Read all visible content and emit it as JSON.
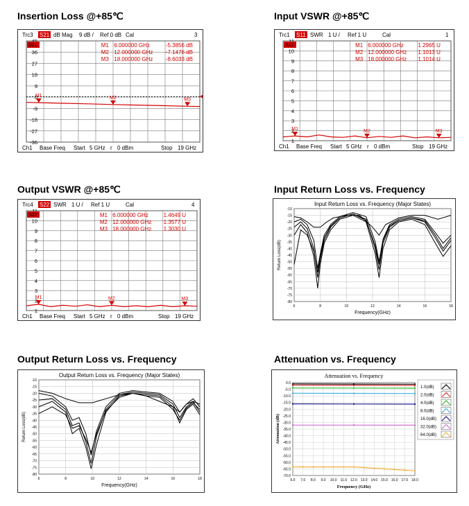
{
  "titles": {
    "insertion": "Insertion Loss @+85℃",
    "input_vswr": "Input VSWR @+85℃",
    "output_vswr": "Output VSWR @+85℃",
    "input_rl": "Input Return Loss vs. Frequency",
    "output_rl": "Output Return Loss vs. Frequency",
    "atten": "Attenuation vs. Frequency"
  },
  "colors": {
    "trace": "#d40000",
    "grid": "#444444",
    "badge": "#d40000"
  },
  "chart_data": [
    {
      "id": "insertion",
      "type": "line",
      "header": {
        "trc": "Trc3",
        "param": "S21",
        "format": "dB Mag",
        "scale": "9 dB /",
        "ref": "Ref 0 dB",
        "cal": "Cal",
        "num": "3"
      },
      "footer": {
        "ch": "Ch1",
        "base": "Base Freq",
        "start": "Start",
        "start_val": "5 GHz",
        "r": "r",
        "power": "0 dBm",
        "stop": "Stop",
        "stop_val": "19 GHz"
      },
      "yticks": [
        "45",
        "36",
        "27",
        "18",
        "9",
        "0",
        "-9",
        "-18",
        "-27",
        "-36"
      ],
      "markers": [
        {
          "id": "M1",
          "freq": "6.000000 GHz",
          "value": "-5.3856 dB"
        },
        {
          "id": "M2",
          "freq": "12.000000 GHz",
          "value": "-7.1476 dB"
        },
        {
          "id": "M3",
          "freq": "18.000000 GHz",
          "value": "-8.6033 dB"
        }
      ],
      "x": [
        5,
        6,
        8,
        10,
        12,
        14,
        16,
        18,
        19
      ],
      "y": [
        -5.2,
        -5.4,
        -6.0,
        -6.5,
        -7.1,
        -7.6,
        -8.1,
        -8.6,
        -8.8
      ]
    },
    {
      "id": "input_vswr",
      "type": "line",
      "header": {
        "trc": "Trc1",
        "param": "S11",
        "format": "SWR",
        "scale": "1 U /",
        "ref": "Ref 1 U",
        "cal": "Cal",
        "num": "1"
      },
      "footer": {
        "ch": "Ch1",
        "base": "Base Freq",
        "start": "Start",
        "start_val": "5 GHz",
        "r": "r",
        "power": "0 dBm",
        "stop": "Stop",
        "stop_val": "19 GHz"
      },
      "yticks": [
        "11",
        "10",
        "9",
        "8",
        "7",
        "6",
        "5",
        "4",
        "3",
        "2",
        "1"
      ],
      "markers": [
        {
          "id": "M1",
          "freq": "6.000000 GHz",
          "value": "1.2965 U"
        },
        {
          "id": "M2",
          "freq": "12.000000 GHz",
          "value": "1.1013 U"
        },
        {
          "id": "M3",
          "freq": "18.000000 GHz",
          "value": "1.1014 U"
        }
      ],
      "x": [
        5,
        5.5,
        6,
        7,
        8,
        9,
        10,
        11,
        12,
        13,
        14,
        15,
        16,
        17,
        18,
        19
      ],
      "y": [
        1.2,
        1.25,
        1.3,
        1.2,
        1.4,
        1.2,
        1.15,
        1.3,
        1.1,
        1.25,
        1.15,
        1.3,
        1.1,
        1.2,
        1.1,
        1.15
      ]
    },
    {
      "id": "output_vswr",
      "type": "line",
      "header": {
        "trc": "Trc4",
        "param": "S22",
        "format": "SWR",
        "scale": "1 U /",
        "ref": "Ref 1 U",
        "cal": "Cal",
        "num": "4"
      },
      "footer": {
        "ch": "Ch1",
        "base": "Base Freq",
        "start": "Start",
        "start_val": "5 GHz",
        "r": "r",
        "power": "0 dBm",
        "stop": "Stop",
        "stop_val": "19 GHz"
      },
      "yticks": [
        "11",
        "10",
        "9",
        "8",
        "7",
        "6",
        "5",
        "4",
        "3",
        "2",
        "1"
      ],
      "markers": [
        {
          "id": "M1",
          "freq": "6.000000 GHz",
          "value": "1.4649 U"
        },
        {
          "id": "M2",
          "freq": "12.000000 GHz",
          "value": "1.3577 U"
        },
        {
          "id": "M3",
          "freq": "18.000000 GHz",
          "value": "1.3030 U"
        }
      ],
      "x": [
        5,
        6,
        7,
        8,
        9,
        10,
        11,
        12,
        13,
        14,
        15,
        16,
        17,
        18,
        19
      ],
      "y": [
        1.3,
        1.45,
        1.2,
        1.35,
        1.25,
        1.4,
        1.2,
        1.35,
        1.2,
        1.3,
        1.2,
        1.35,
        1.2,
        1.3,
        1.25
      ]
    },
    {
      "id": "input_rl",
      "type": "line",
      "title": "Input Return Loss vs. Frequency (Major States)",
      "xlabel": "Frequency(GHz)",
      "ylabel": "Return Loss(dB)",
      "xticks": [
        "6",
        "8",
        "10",
        "12",
        "14",
        "16",
        "18"
      ],
      "yticks": [
        "-10",
        "-15",
        "-20",
        "-25",
        "-30",
        "-35",
        "-40",
        "-45",
        "-50",
        "-55",
        "-60",
        "-65",
        "-70",
        "-75",
        "-80"
      ],
      "xlim": [
        6,
        18
      ],
      "ylim": [
        -80,
        -10
      ],
      "series": [
        {
          "x": [
            6,
            6.5,
            7,
            7.5,
            7.8,
            8,
            8.3,
            8.8,
            9.5,
            10.5,
            11.5,
            12.2,
            12.5,
            12.8,
            13.3,
            14,
            15,
            16,
            16.8,
            17.4,
            18
          ],
          "y": [
            -20,
            -18,
            -22,
            -34,
            -55,
            -44,
            -30,
            -22,
            -16,
            -13,
            -16,
            -35,
            -50,
            -33,
            -22,
            -18,
            -16,
            -18,
            -28,
            -36,
            -30
          ]
        },
        {
          "x": [
            6,
            6.5,
            7,
            7.5,
            7.8,
            8,
            8.3,
            8.8,
            9.5,
            10.5,
            11.5,
            12.2,
            12.5,
            12.8,
            13.3,
            14,
            15,
            16,
            16.8,
            17.4,
            18
          ],
          "y": [
            -24,
            -20,
            -25,
            -40,
            -62,
            -48,
            -34,
            -24,
            -17,
            -14,
            -18,
            -40,
            -56,
            -36,
            -24,
            -19,
            -17,
            -20,
            -32,
            -42,
            -34
          ]
        },
        {
          "x": [
            6,
            6.5,
            7,
            7.5,
            7.8,
            8,
            8.3,
            8.8,
            9.5,
            10.5,
            11.5,
            12.2,
            12.5,
            12.8,
            13.3,
            14,
            15,
            16,
            16.8,
            17.4,
            18
          ],
          "y": [
            -30,
            -22,
            -28,
            -46,
            -70,
            -52,
            -36,
            -26,
            -18,
            -15,
            -20,
            -44,
            -62,
            -40,
            -26,
            -20,
            -18,
            -22,
            -36,
            -46,
            -38
          ]
        },
        {
          "x": [
            6,
            6.5,
            7,
            7.5,
            7.8,
            8,
            8.3,
            8.8,
            9.5,
            10.5,
            11.5,
            12.2,
            12.5,
            12.8,
            13.3,
            14,
            15,
            16,
            16.8,
            17.4,
            18
          ],
          "y": [
            -52,
            -26,
            -30,
            -42,
            -58,
            -46,
            -32,
            -23,
            -17,
            -14,
            -19,
            -38,
            -52,
            -34,
            -23,
            -19,
            -17,
            -19,
            -30,
            -40,
            -32
          ]
        },
        {
          "x": [
            6,
            6.5,
            7,
            7.5,
            8,
            8.5,
            9,
            10,
            11,
            12,
            12.5,
            13,
            14,
            15,
            16,
            17,
            18
          ],
          "y": [
            -16,
            -17,
            -20,
            -24,
            -24,
            -20,
            -17,
            -15,
            -15,
            -24,
            -30,
            -22,
            -17,
            -15,
            -15,
            -18,
            -15
          ]
        }
      ]
    },
    {
      "id": "output_rl",
      "type": "line",
      "title": "Output Return Loss vs. Frequency (Major States)",
      "xlabel": "Frequency(GHz)",
      "ylabel": "Return Loss(dB)",
      "xticks": [
        "6",
        "8",
        "10",
        "12",
        "14",
        "16",
        "18"
      ],
      "yticks": [
        "-10",
        "-15",
        "-20",
        "-25",
        "-30",
        "-35",
        "-40",
        "-45",
        "-50",
        "-55",
        "-60",
        "-65",
        "-70",
        "-75",
        "-80"
      ],
      "xlim": [
        6,
        18
      ],
      "ylim": [
        -80,
        -10
      ],
      "series": [
        {
          "x": [
            6,
            7,
            8,
            8.5,
            9,
            9.5,
            9.9,
            10.3,
            11,
            12,
            13,
            14,
            15,
            16,
            16.5,
            17,
            17.5,
            18
          ],
          "y": [
            -20,
            -22,
            -30,
            -40,
            -38,
            -50,
            -66,
            -48,
            -30,
            -20,
            -18,
            -19,
            -20,
            -26,
            -34,
            -28,
            -24,
            -30
          ]
        },
        {
          "x": [
            6,
            7,
            8,
            8.5,
            9,
            9.5,
            9.9,
            10.3,
            11,
            12,
            13,
            14,
            15,
            16,
            16.5,
            17,
            17.5,
            18
          ],
          "y": [
            -25,
            -24,
            -32,
            -44,
            -42,
            -56,
            -72,
            -52,
            -32,
            -21,
            -19,
            -20,
            -21,
            -28,
            -38,
            -30,
            -26,
            -34
          ]
        },
        {
          "x": [
            6,
            7,
            8,
            8.5,
            9,
            9.5,
            9.9,
            10.3,
            11,
            12,
            13,
            14,
            15,
            16,
            16.5,
            17,
            17.5,
            18
          ],
          "y": [
            -30,
            -26,
            -34,
            -50,
            -46,
            -60,
            -76,
            -58,
            -34,
            -22,
            -20,
            -21,
            -22,
            -30,
            -42,
            -32,
            -28,
            -36
          ]
        },
        {
          "x": [
            6,
            7,
            8,
            8.5,
            9,
            9.5,
            9.9,
            10.3,
            11,
            12,
            13,
            14,
            15,
            16,
            16.5,
            17,
            17.5,
            18
          ],
          "y": [
            -35,
            -30,
            -36,
            -46,
            -44,
            -54,
            -64,
            -50,
            -33,
            -23,
            -20,
            -22,
            -23,
            -32,
            -40,
            -31,
            -27,
            -32
          ]
        },
        {
          "x": [
            6,
            7,
            8,
            9,
            10,
            11,
            12,
            13,
            14,
            15,
            16,
            16.5,
            17,
            17.5,
            18
          ],
          "y": [
            -18,
            -20,
            -24,
            -27,
            -27,
            -24,
            -21,
            -20,
            -22,
            -26,
            -30,
            -34,
            -28,
            -26,
            -28
          ]
        }
      ]
    },
    {
      "id": "atten",
      "type": "line",
      "title": "Attenuation vs. Frequency",
      "xlabel": "Frequency (GHz)",
      "ylabel": "Attenuation (dB)",
      "xticks": [
        "6.0",
        "7.0",
        "8.0",
        "9.0",
        "10.0",
        "11.0",
        "12.0",
        "13.0",
        "14.0",
        "15.0",
        "16.0",
        "17.0",
        "18.0"
      ],
      "yticks": [
        "0.0",
        "-5.0",
        "-10.0",
        "-15.0",
        "-20.0",
        "-25.0",
        "-30.0",
        "-35.0",
        "-40.0",
        "-45.0",
        "-50.0",
        "-55.0",
        "-60.0",
        "-65.0",
        "-70.0"
      ],
      "xlim": [
        6,
        18
      ],
      "ylim": [
        -70,
        0
      ],
      "series": [
        {
          "name": "1.0(dB)",
          "color": "#000000",
          "x": [
            6,
            12,
            18
          ],
          "y": [
            -1.0,
            -1.1,
            -1.2
          ]
        },
        {
          "name": "2.0(dB)",
          "color": "#e03030",
          "x": [
            6,
            12,
            18
          ],
          "y": [
            -2.0,
            -2.1,
            -2.2
          ]
        },
        {
          "name": "4.0(dB)",
          "color": "#30c030",
          "x": [
            6,
            12,
            18
          ],
          "y": [
            -4.0,
            -4.1,
            -4.2
          ]
        },
        {
          "name": "8.0(dB)",
          "color": "#40b0e0",
          "x": [
            6,
            12,
            18
          ],
          "y": [
            -8.0,
            -8.1,
            -8.2
          ]
        },
        {
          "name": "16.0(dB)",
          "color": "#1a1a8c",
          "x": [
            6,
            12,
            18
          ],
          "y": [
            -16.0,
            -16.1,
            -16.2
          ]
        },
        {
          "name": "32.0(dB)",
          "color": "#d070d0",
          "x": [
            6,
            12,
            18
          ],
          "y": [
            -32.0,
            -32.0,
            -32.1
          ]
        },
        {
          "name": "64.0(dB)",
          "color": "#f0b040",
          "x": [
            6,
            7,
            8,
            9,
            10,
            11,
            12,
            13,
            14,
            15,
            16,
            17,
            18
          ],
          "y": [
            -63.5,
            -63.5,
            -63.5,
            -63.5,
            -63.5,
            -63.5,
            -63.5,
            -64.0,
            -64.5,
            -65.0,
            -65.5,
            -66.0,
            -66.5
          ]
        }
      ]
    }
  ]
}
